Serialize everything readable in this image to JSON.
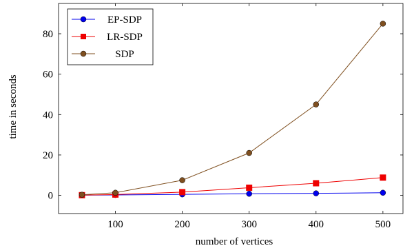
{
  "chart_data": {
    "type": "line",
    "title": "",
    "xlabel": "number of vertices",
    "ylabel": "time in seconds",
    "x": [
      50,
      100,
      200,
      300,
      400,
      500
    ],
    "xlim": [
      15,
      530
    ],
    "ylim": [
      -9,
      95
    ],
    "xticks": [
      100,
      200,
      300,
      400,
      500
    ],
    "yticks": [
      0,
      20,
      40,
      60,
      80
    ],
    "grid": false,
    "legend_position": "top-left",
    "series": [
      {
        "name": "EP-SDP",
        "color": "#0000ee",
        "marker": "circle",
        "values": [
          0.1,
          0.2,
          0.5,
          0.8,
          1.0,
          1.3
        ]
      },
      {
        "name": "LR-SDP",
        "color": "#ee0000",
        "marker": "square",
        "values": [
          0.1,
          0.4,
          1.6,
          3.8,
          6.0,
          8.8
        ]
      },
      {
        "name": "SDP",
        "color": "#7f4f1f",
        "marker": "circle",
        "values": [
          0.3,
          1.3,
          7.5,
          21.0,
          45.0,
          85.0
        ]
      }
    ]
  }
}
